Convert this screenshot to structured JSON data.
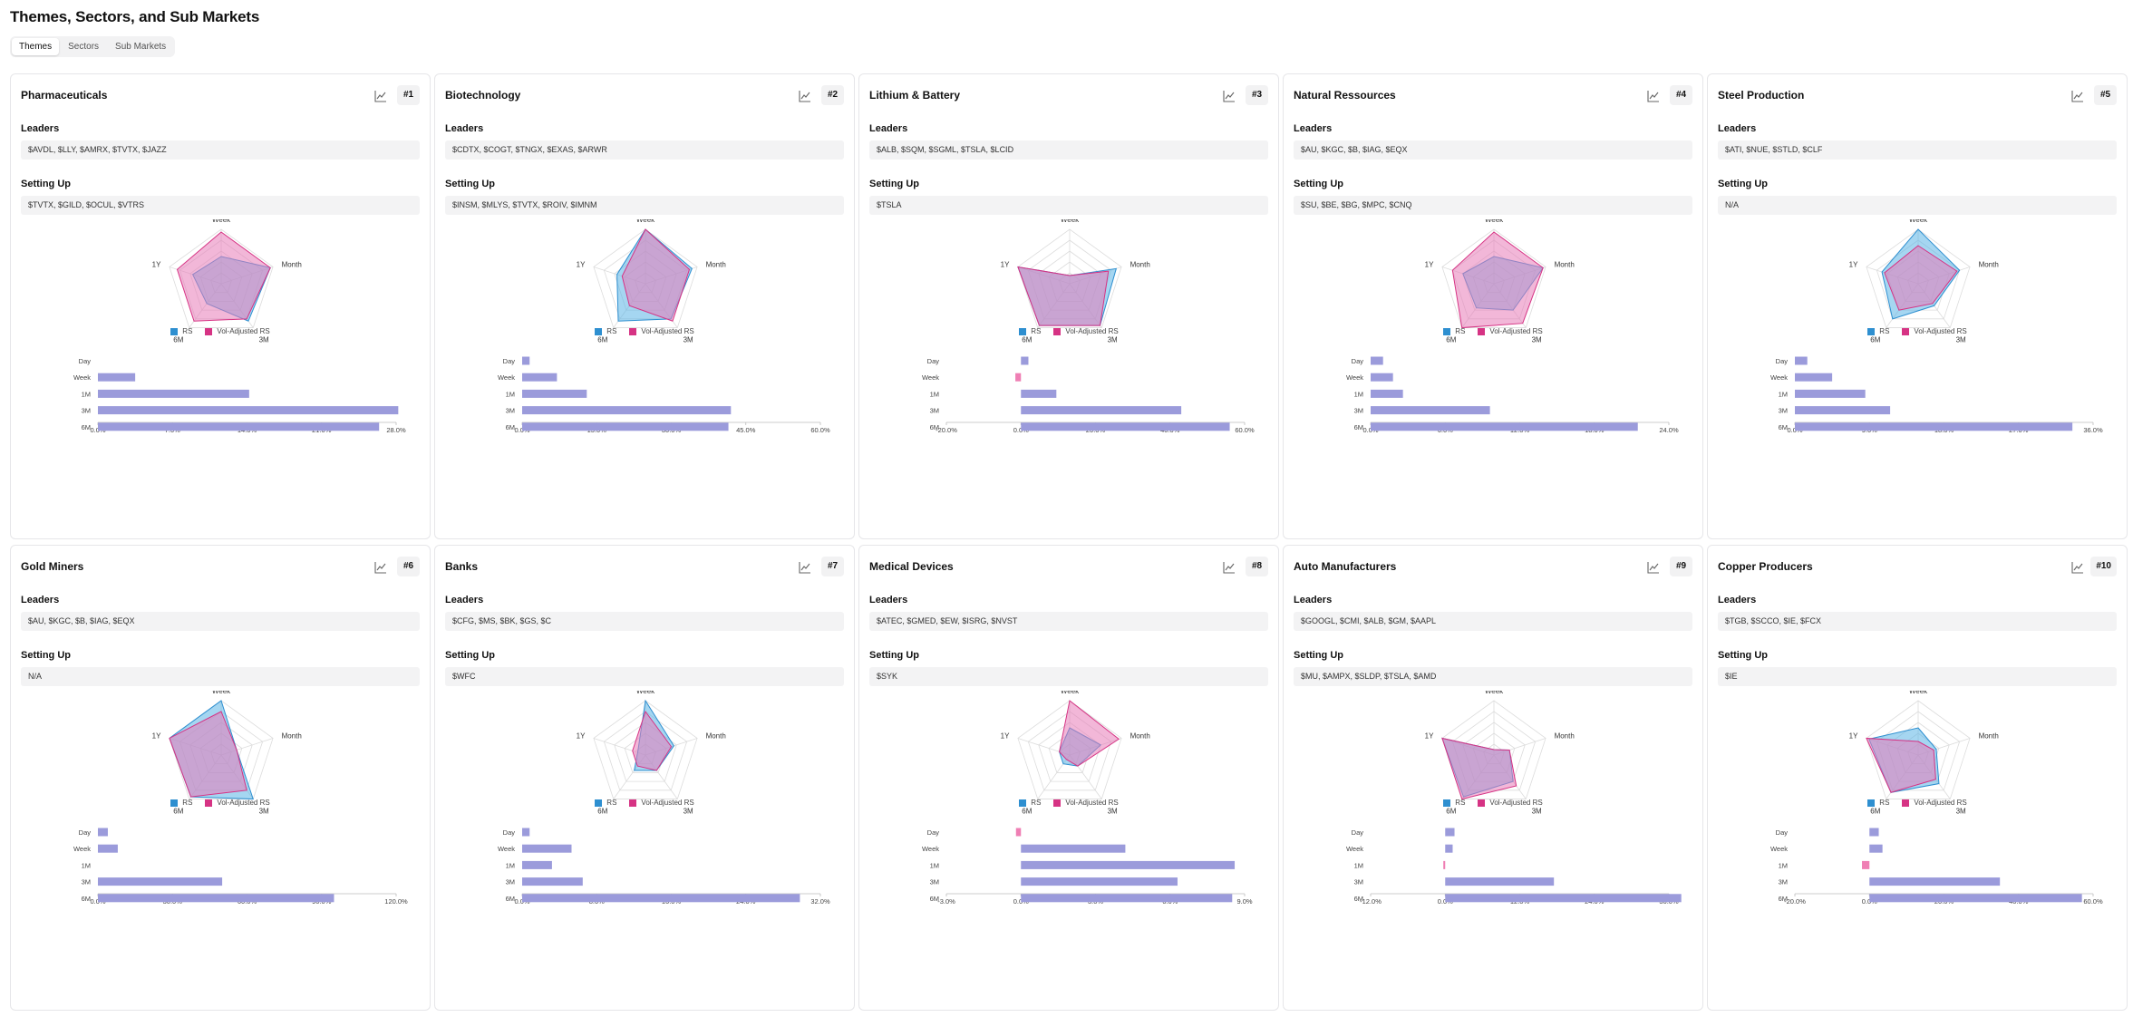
{
  "page_title": "Themes, Sectors, and Sub Markets",
  "tabs": [
    {
      "label": "Themes",
      "active": true
    },
    {
      "label": "Sectors",
      "active": false
    },
    {
      "label": "Sub Markets",
      "active": false
    }
  ],
  "section_labels": {
    "leaders": "Leaders",
    "setting_up": "Setting Up"
  },
  "radar_axes": [
    "Week",
    "Month",
    "3M",
    "6M",
    "1Y"
  ],
  "bar_axes": [
    "Day",
    "Week",
    "1M",
    "3M",
    "6M",
    "1Y"
  ],
  "legend": [
    {
      "label": "RS",
      "color": "#2e8fd0"
    },
    {
      "label": "Vol-Adjusted RS",
      "color": "#d63384"
    }
  ],
  "colors": {
    "rs_fill": "#5bb5e6",
    "vol_fill": "#e87bb8",
    "bar_positive": "#9b9bdb",
    "bar_negative": "#ef7fb4"
  },
  "icons": {
    "chart_button": "line-chart-icon"
  },
  "cards": [
    {
      "title": "Pharmaceuticals",
      "rank": "#1",
      "leaders": "$AVDL, $LLY, $AMRX, $TVTX, $JAZZ",
      "setting_up": "$TVTX, $GILD, $OCUL, $VTRS",
      "chart_data": {
        "type": "radar+bar",
        "radar": {
          "axes": [
            "Week",
            "Month",
            "3M",
            "6M",
            "1Y"
          ],
          "series": [
            {
              "name": "RS",
              "values": [
                0.5,
                0.95,
                0.85,
                0.45,
                0.55
              ]
            },
            {
              "name": "Vol-Adjusted RS",
              "values": [
                0.95,
                0.95,
                0.8,
                0.85,
                0.85
              ]
            }
          ]
        },
        "bars": {
          "categories": [
            "Day",
            "Week",
            "1M",
            "3M",
            "6M",
            "1Y"
          ],
          "values": [
            0,
            3.5,
            14.2,
            28.2,
            26.4,
            23.3
          ],
          "ticks": [
            "0.0%",
            "7.0%",
            "14.0%",
            "21.0%",
            "28.0%"
          ],
          "xlim": [
            0,
            28
          ]
        }
      }
    },
    {
      "title": "Biotechnology",
      "rank": "#2",
      "leaders": "$CDTX, $COGT, $TNGX, $EXAS, $ARWR",
      "setting_up": "$INSM, $MLYS, $TVTX, $ROIV, $IMNM",
      "chart_data": {
        "type": "radar+bar",
        "radar": {
          "axes": [
            "Week",
            "Month",
            "3M",
            "6M",
            "1Y"
          ],
          "series": [
            {
              "name": "RS",
              "values": [
                1.0,
                0.9,
                0.8,
                0.85,
                0.55
              ]
            },
            {
              "name": "Vol-Adjusted RS",
              "values": [
                1.0,
                0.85,
                0.85,
                0.5,
                0.45
              ]
            }
          ]
        },
        "bars": {
          "categories": [
            "Day",
            "Week",
            "1M",
            "3M",
            "6M",
            "1Y"
          ],
          "values": [
            1.5,
            7,
            13,
            42,
            41.5,
            28
          ],
          "ticks": [
            "0.0%",
            "15.0%",
            "30.0%",
            "45.0%",
            "60.0%"
          ],
          "xlim": [
            0,
            60
          ]
        }
      }
    },
    {
      "title": "Lithium & Battery",
      "rank": "#3",
      "leaders": "$ALB, $SQM, $SGML, $TSLA, $LCID",
      "setting_up": "$TSLA",
      "chart_data": {
        "type": "radar+bar",
        "radar": {
          "axes": [
            "Week",
            "Month",
            "3M",
            "6M",
            "1Y"
          ],
          "series": [
            {
              "name": "RS",
              "values": [
                0.15,
                0.9,
                0.95,
                0.95,
                1.0
              ]
            },
            {
              "name": "Vol-Adjusted RS",
              "values": [
                0.15,
                0.75,
                0.95,
                0.95,
                1.0
              ]
            }
          ]
        },
        "bars": {
          "categories": [
            "Day",
            "Week",
            "1M",
            "3M",
            "6M",
            "1Y"
          ],
          "values": [
            2,
            -1.5,
            9.5,
            43,
            56,
            40
          ],
          "ticks": [
            "-20.0%",
            "0.0%",
            "20.0%",
            "40.0%",
            "60.0%"
          ],
          "xlim": [
            -20,
            60
          ]
        }
      }
    },
    {
      "title": "Natural Ressources",
      "rank": "#4",
      "leaders": "$AU, $KGC, $B, $IAG, $EQX",
      "setting_up": "$SU, $BE, $BG, $MPC, $CNQ",
      "chart_data": {
        "type": "radar+bar",
        "radar": {
          "axes": [
            "Week",
            "Month",
            "3M",
            "6M",
            "1Y"
          ],
          "series": [
            {
              "name": "RS",
              "values": [
                0.5,
                0.95,
                0.6,
                0.55,
                0.6
              ]
            },
            {
              "name": "Vol-Adjusted RS",
              "values": [
                0.95,
                0.95,
                0.9,
                1.0,
                0.8
              ]
            }
          ]
        },
        "bars": {
          "categories": [
            "Day",
            "Week",
            "1M",
            "3M",
            "6M",
            "1Y"
          ],
          "values": [
            1,
            1.8,
            2.6,
            9.6,
            21.5,
            15.9
          ],
          "ticks": [
            "0.0%",
            "6.0%",
            "12.0%",
            "18.0%",
            "24.0%"
          ],
          "xlim": [
            0,
            24
          ]
        }
      }
    },
    {
      "title": "Steel Production",
      "rank": "#5",
      "leaders": "$ATI, $NUE, $STLD, $CLF",
      "setting_up": "N/A",
      "chart_data": {
        "type": "radar+bar",
        "radar": {
          "axes": [
            "Week",
            "Month",
            "3M",
            "6M",
            "1Y"
          ],
          "series": [
            {
              "name": "RS",
              "values": [
                1.0,
                0.8,
                0.5,
                0.8,
                0.7
              ]
            },
            {
              "name": "Vol-Adjusted RS",
              "values": [
                0.7,
                0.75,
                0.45,
                0.6,
                0.65
              ]
            }
          ]
        },
        "bars": {
          "categories": [
            "Day",
            "Week",
            "1M",
            "3M",
            "6M",
            "1Y"
          ],
          "values": [
            1.5,
            4.5,
            8.5,
            11.5,
            33.5,
            14
          ],
          "ticks": [
            "0.0%",
            "9.0%",
            "18.0%",
            "27.0%",
            "36.0%"
          ],
          "xlim": [
            0,
            36
          ]
        }
      }
    },
    {
      "title": "Gold Miners",
      "rank": "#6",
      "leaders": "$AU, $KGC, $B, $IAG, $EQX",
      "setting_up": "N/A",
      "chart_data": {
        "type": "radar+bar",
        "radar": {
          "axes": [
            "Week",
            "Month",
            "3M",
            "6M",
            "1Y"
          ],
          "series": [
            {
              "name": "RS",
              "values": [
                1.0,
                0.3,
                1.0,
                0.95,
                1.0
              ]
            },
            {
              "name": "Vol-Adjusted RS",
              "values": [
                0.8,
                0.3,
                0.8,
                0.95,
                1.0
              ]
            }
          ]
        },
        "bars": {
          "categories": [
            "Day",
            "Week",
            "1M",
            "3M",
            "6M",
            "1Y"
          ],
          "values": [
            4,
            8,
            0,
            50,
            95,
            114
          ],
          "ticks": [
            "0.0%",
            "30.0%",
            "60.0%",
            "90.0%",
            "120.0%"
          ],
          "xlim": [
            0,
            120
          ]
        }
      }
    },
    {
      "title": "Banks",
      "rank": "#7",
      "leaders": "$CFG, $MS, $BK, $GS, $C",
      "setting_up": "$WFC",
      "chart_data": {
        "type": "radar+bar",
        "radar": {
          "axes": [
            "Week",
            "Month",
            "3M",
            "6M",
            "1Y"
          ],
          "series": [
            {
              "name": "RS",
              "values": [
                1.0,
                0.55,
                0.35,
                0.35,
                0.15
              ]
            },
            {
              "name": "Vol-Adjusted RS",
              "values": [
                0.8,
                0.5,
                0.35,
                0.25,
                0.25
              ]
            }
          ]
        },
        "bars": {
          "categories": [
            "Day",
            "Week",
            "1M",
            "3M",
            "6M",
            "1Y"
          ],
          "values": [
            0.8,
            5.3,
            3.2,
            6.5,
            29.8,
            11.8
          ],
          "ticks": [
            "0.0%",
            "8.0%",
            "16.0%",
            "24.0%",
            "32.0%"
          ],
          "xlim": [
            0,
            32
          ]
        }
      }
    },
    {
      "title": "Medical Devices",
      "rank": "#8",
      "leaders": "$ATEC, $GMED, $EW, $ISRG, $NVST",
      "setting_up": "$SYK",
      "chart_data": {
        "type": "radar+bar",
        "radar": {
          "axes": [
            "Week",
            "Month",
            "3M",
            "6M",
            "1Y"
          ],
          "series": [
            {
              "name": "RS",
              "values": [
                0.5,
                0.6,
                0.25,
                0.2,
                0.2
              ]
            },
            {
              "name": "Vol-Adjusted RS",
              "values": [
                1.0,
                0.95,
                0.25,
                0.1,
                0.2
              ]
            }
          ]
        },
        "bars": {
          "categories": [
            "Day",
            "Week",
            "1M",
            "3M",
            "6M",
            "1Y"
          ],
          "values": [
            -0.2,
            4.2,
            8.6,
            6.3,
            8.5,
            6.5
          ],
          "ticks": [
            "-3.0%",
            "0.0%",
            "3.0%",
            "6.0%",
            "9.0%"
          ],
          "xlim": [
            -3,
            9
          ]
        }
      }
    },
    {
      "title": "Auto Manufacturers",
      "rank": "#9",
      "leaders": "$GOOGL, $CMI, $ALB, $GM, $AAPL",
      "setting_up": "$MU, $AMPX, $SLDP, $TSLA, $AMD",
      "chart_data": {
        "type": "radar+bar",
        "radar": {
          "axes": [
            "Week",
            "Month",
            "3M",
            "6M",
            "1Y"
          ],
          "series": [
            {
              "name": "RS",
              "values": [
                0.1,
                0.3,
                0.6,
                0.95,
                1.0
              ]
            },
            {
              "name": "Vol-Adjusted RS",
              "values": [
                0.1,
                0.3,
                0.7,
                1.0,
                1.0
              ]
            }
          ]
        },
        "bars": {
          "categories": [
            "Day",
            "Week",
            "1M",
            "3M",
            "6M",
            "1Y"
          ],
          "values": [
            1.5,
            1.2,
            -0.3,
            17.5,
            38,
            32.5
          ],
          "ticks": [
            "-12.0%",
            "0.0%",
            "12.0%",
            "24.0%",
            "36.0%"
          ],
          "xlim": [
            -12,
            36
          ]
        }
      }
    },
    {
      "title": "Copper Producers",
      "rank": "#10",
      "leaders": "$TGB, $SCCO, $IE, $FCX",
      "setting_up": "$IE",
      "chart_data": {
        "type": "radar+bar",
        "radar": {
          "axes": [
            "Week",
            "Month",
            "3M",
            "6M",
            "1Y"
          ],
          "series": [
            {
              "name": "RS",
              "values": [
                0.5,
                0.35,
                0.65,
                0.85,
                0.95
              ]
            },
            {
              "name": "Vol-Adjusted RS",
              "values": [
                0.25,
                0.3,
                0.55,
                0.85,
                1.0
              ]
            }
          ]
        },
        "bars": {
          "categories": [
            "Day",
            "Week",
            "1M",
            "3M",
            "6M",
            "1Y"
          ],
          "values": [
            2.5,
            3.5,
            -2,
            35,
            57,
            46
          ],
          "ticks": [
            "-20.0%",
            "0.0%",
            "20.0%",
            "40.0%",
            "60.0%"
          ],
          "xlim": [
            -20,
            60
          ]
        }
      }
    }
  ]
}
